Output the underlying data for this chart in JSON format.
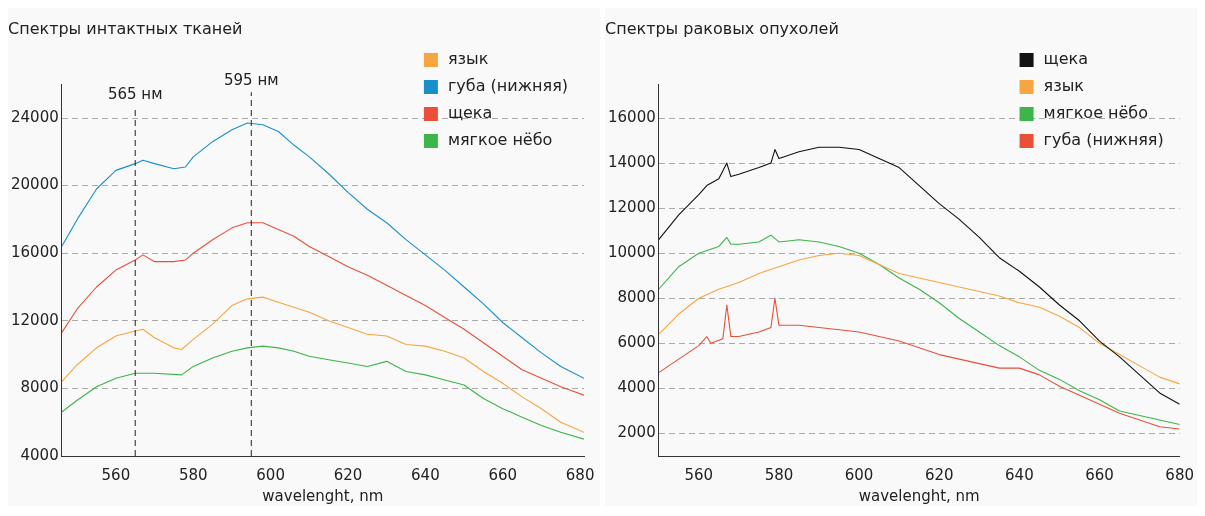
{
  "chart_data": [
    {
      "type": "line",
      "title": "Спектры интактных тканей",
      "xlabel": "wavelenght, nm",
      "xlim": [
        546,
        681
      ],
      "xticks": [
        560,
        580,
        600,
        620,
        640,
        660,
        680
      ],
      "ylim": [
        4000,
        26000
      ],
      "yticks": [
        4000,
        8000,
        12000,
        16000,
        20000,
        24000
      ],
      "grid": "y",
      "legend": "top right",
      "marker": "none",
      "line_style": "solid",
      "ref_lines": [
        {
          "axis": "x",
          "value": 565,
          "label": "565 нм",
          "color": "#222222",
          "line_style": "dashed"
        },
        {
          "axis": "x",
          "value": 595,
          "label": "595 нм",
          "color": "#222222",
          "line_style": "dashed"
        }
      ],
      "series": [
        {
          "name": "язык",
          "color": "#f7a541",
          "x": [
            546,
            550,
            555,
            560,
            565,
            567,
            570,
            575,
            577,
            580,
            585,
            590,
            594,
            598,
            602,
            606,
            610,
            615,
            620,
            625,
            630,
            635,
            640,
            645,
            650,
            655,
            660,
            665,
            670,
            675,
            681
          ],
          "values": [
            8400,
            9400,
            10400,
            11100,
            11400,
            11500,
            11000,
            10400,
            10300,
            10900,
            11800,
            12900,
            13300,
            13400,
            13100,
            12800,
            12500,
            12000,
            11600,
            11200,
            11100,
            10600,
            10500,
            10200,
            9800,
            9000,
            8300,
            7500,
            6800,
            6000,
            5400
          ]
        },
        {
          "name": "губа (нижняя)",
          "color": "#1a8fc7",
          "x": [
            546,
            550,
            555,
            560,
            565,
            567,
            570,
            575,
            578,
            580,
            585,
            590,
            594,
            598,
            602,
            606,
            610,
            615,
            620,
            625,
            630,
            635,
            640,
            645,
            650,
            655,
            660,
            665,
            670,
            675,
            681
          ],
          "values": [
            16400,
            18000,
            19800,
            20900,
            21300,
            21500,
            21300,
            21000,
            21100,
            21700,
            22600,
            23300,
            23700,
            23600,
            23200,
            22400,
            21700,
            20700,
            19600,
            18600,
            17800,
            16800,
            15900,
            15000,
            14000,
            13000,
            11900,
            11000,
            10100,
            9300,
            8600
          ]
        },
        {
          "name": "щека",
          "color": "#e8503a",
          "x": [
            546,
            550,
            555,
            560,
            565,
            567,
            570,
            575,
            578,
            580,
            585,
            590,
            594,
            598,
            602,
            606,
            610,
            615,
            620,
            625,
            630,
            635,
            640,
            645,
            650,
            655,
            660,
            665,
            670,
            675,
            681
          ],
          "values": [
            11300,
            12700,
            14000,
            15000,
            15600,
            15900,
            15500,
            15500,
            15600,
            16000,
            16800,
            17500,
            17800,
            17800,
            17400,
            17000,
            16400,
            15800,
            15200,
            14700,
            14100,
            13500,
            12900,
            12200,
            11500,
            10700,
            9900,
            9100,
            8600,
            8100,
            7600
          ]
        },
        {
          "name": "мягкое нёбо",
          "color": "#3cb54a",
          "x": [
            546,
            550,
            555,
            560,
            565,
            570,
            577,
            580,
            585,
            590,
            594,
            598,
            602,
            606,
            610,
            615,
            620,
            625,
            630,
            635,
            640,
            645,
            650,
            655,
            660,
            665,
            670,
            675,
            681
          ],
          "values": [
            6600,
            7300,
            8100,
            8600,
            8900,
            8900,
            8800,
            9300,
            9800,
            10200,
            10400,
            10500,
            10400,
            10200,
            9900,
            9700,
            9500,
            9300,
            9600,
            9000,
            8800,
            8500,
            8200,
            7400,
            6800,
            6300,
            5800,
            5400,
            5000
          ]
        }
      ]
    },
    {
      "type": "line",
      "title": "Спектры раковых опухолей",
      "xlabel": "wavelenght, nm",
      "xlim": [
        550,
        680
      ],
      "xticks": [
        560,
        580,
        600,
        620,
        640,
        660,
        680
      ],
      "ylim": [
        1000,
        17500
      ],
      "yticks": [
        2000,
        4000,
        6000,
        8000,
        10000,
        12000,
        14000,
        16000
      ],
      "grid": "y",
      "legend": "top right",
      "marker": "none",
      "line_style": "solid",
      "series": [
        {
          "name": "щека",
          "color": "#111111",
          "x": [
            550,
            555,
            560,
            562,
            565,
            567,
            568,
            570,
            575,
            578,
            579,
            580,
            585,
            590,
            595,
            600,
            605,
            610,
            615,
            620,
            625,
            630,
            635,
            640,
            645,
            650,
            655,
            660,
            665,
            670,
            675,
            680
          ],
          "values": [
            10600,
            11700,
            12600,
            13000,
            13300,
            14000,
            13400,
            13500,
            13800,
            14000,
            14600,
            14200,
            14500,
            14700,
            14700,
            14600,
            14200,
            13800,
            13000,
            12200,
            11500,
            10700,
            9800,
            9200,
            8500,
            7700,
            7000,
            6100,
            5400,
            4600,
            3800,
            3300
          ]
        },
        {
          "name": "язык",
          "color": "#f7a541",
          "x": [
            550,
            555,
            560,
            565,
            570,
            575,
            580,
            585,
            590,
            595,
            600,
            605,
            610,
            615,
            620,
            625,
            630,
            635,
            640,
            645,
            650,
            655,
            660,
            665,
            670,
            675,
            680
          ],
          "values": [
            6400,
            7300,
            8000,
            8400,
            8700,
            9100,
            9400,
            9700,
            9900,
            10000,
            9900,
            9500,
            9100,
            8900,
            8700,
            8500,
            8300,
            8100,
            7800,
            7600,
            7200,
            6700,
            6000,
            5500,
            5000,
            4500,
            4200
          ]
        },
        {
          "name": "мягкое нёбо",
          "color": "#3cb54a",
          "x": [
            550,
            555,
            560,
            565,
            567,
            568,
            570,
            575,
            578,
            580,
            585,
            590,
            595,
            600,
            605,
            610,
            615,
            620,
            625,
            630,
            635,
            640,
            645,
            650,
            655,
            660,
            665,
            670,
            675,
            680
          ],
          "values": [
            8400,
            9400,
            10000,
            10300,
            10700,
            10400,
            10400,
            10500,
            10800,
            10500,
            10600,
            10500,
            10300,
            10000,
            9500,
            8900,
            8400,
            7800,
            7100,
            6500,
            5900,
            5400,
            4800,
            4400,
            3900,
            3500,
            3000,
            2800,
            2600,
            2400
          ]
        },
        {
          "name": "губа (нижняя)",
          "color": "#e8503a",
          "x": [
            550,
            555,
            560,
            562,
            563,
            566,
            567,
            568,
            570,
            575,
            578,
            579,
            580,
            585,
            590,
            595,
            600,
            605,
            610,
            615,
            620,
            625,
            630,
            635,
            640,
            645,
            650,
            655,
            660,
            665,
            670,
            675,
            680
          ],
          "values": [
            4700,
            5300,
            5900,
            6300,
            6000,
            6200,
            7700,
            6300,
            6300,
            6500,
            6700,
            8000,
            6800,
            6800,
            6700,
            6600,
            6500,
            6300,
            6100,
            5800,
            5500,
            5300,
            5100,
            4900,
            4900,
            4600,
            4100,
            3700,
            3300,
            2900,
            2600,
            2300,
            2200
          ]
        }
      ]
    }
  ]
}
